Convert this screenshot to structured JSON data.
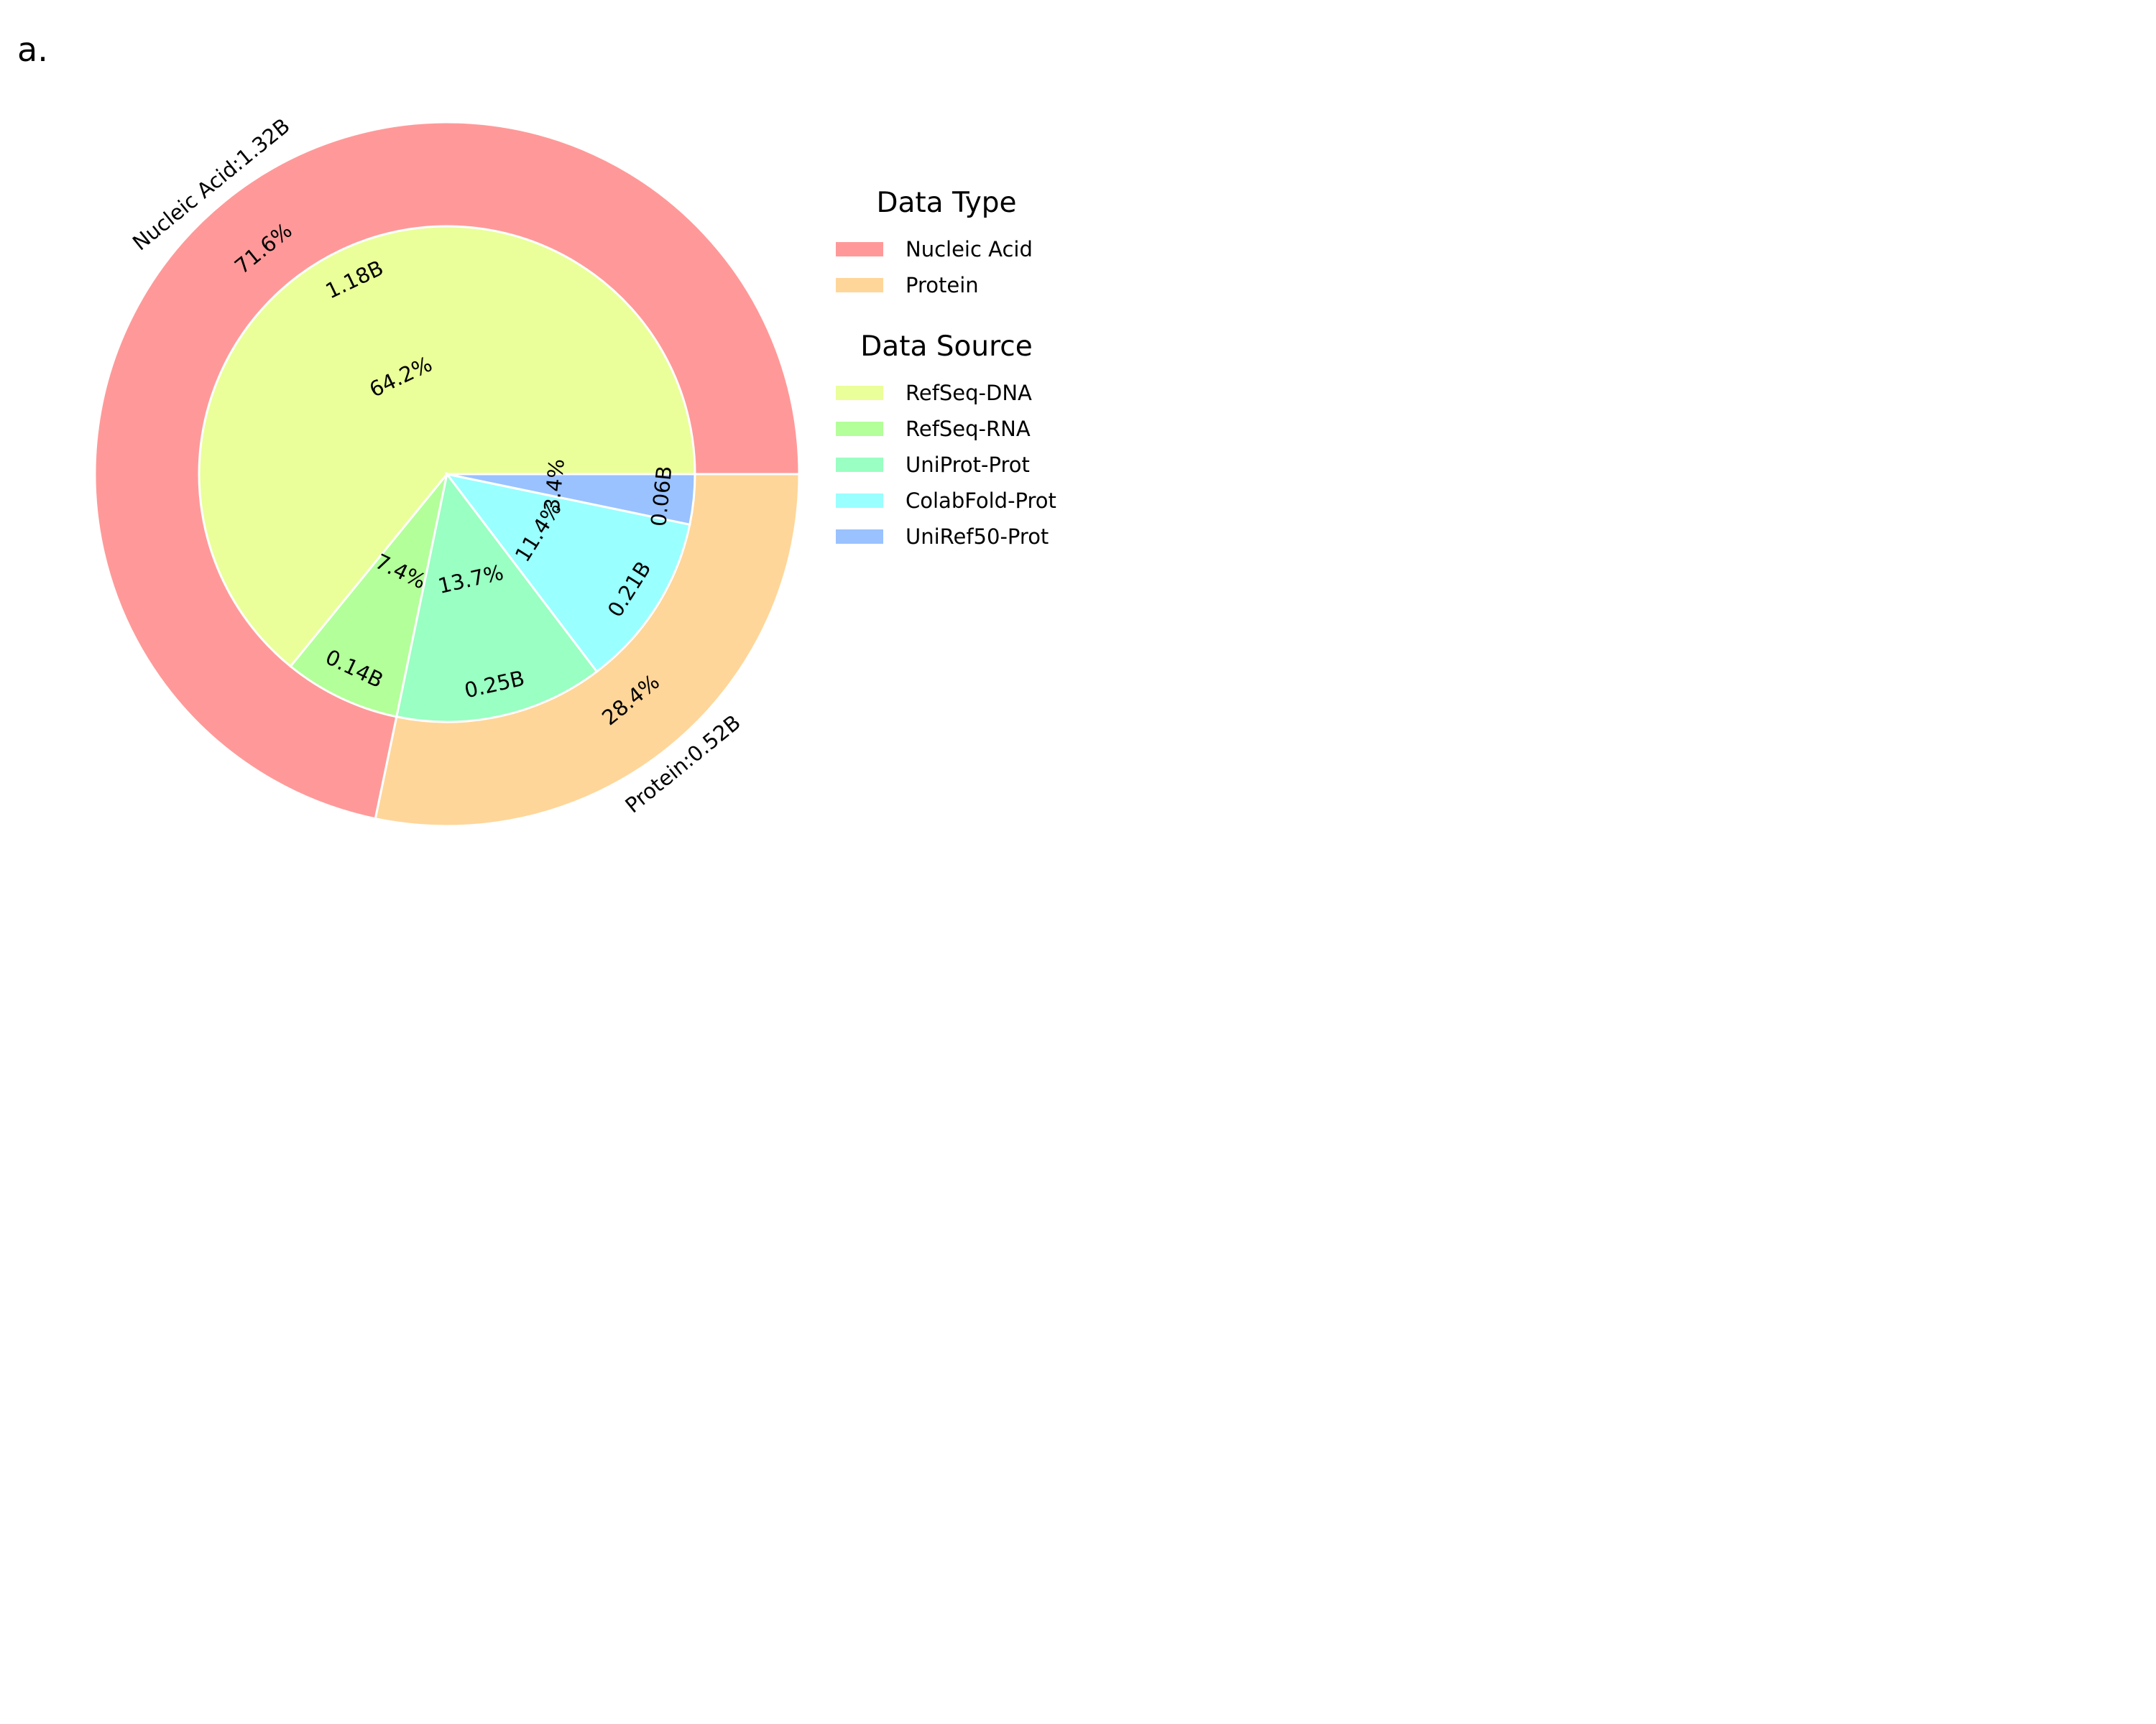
{
  "panel_label": "a.",
  "chart_data": [
    {
      "type": "pie",
      "ring": "outer",
      "slices": [
        {
          "name": "Nucleic Acid",
          "value": 1.32,
          "value_text": "1.32B",
          "percent_text": "71.6%",
          "color": "#ff9999"
        },
        {
          "name": "Protein",
          "value": 0.52,
          "value_text": "0.52B",
          "percent_text": "28.4%",
          "color": "#ffd699"
        }
      ]
    },
    {
      "type": "pie",
      "ring": "inner",
      "slices": [
        {
          "name": "RefSeq-DNA",
          "value": 1.18,
          "value_text": "1.18B",
          "percent_text": "64.2%",
          "color": "#eaff99"
        },
        {
          "name": "RefSeq-RNA",
          "value": 0.14,
          "value_text": "0.14B",
          "percent_text": "7.4%",
          "color": "#b3ff99"
        },
        {
          "name": "UniProt-Prot",
          "value": 0.25,
          "value_text": "0.25B",
          "percent_text": "13.7%",
          "color": "#99ffc2"
        },
        {
          "name": "ColabFold-Prot",
          "value": 0.21,
          "value_text": "0.21B",
          "percent_text": "11.4%",
          "color": "#99ffff"
        },
        {
          "name": "UniRef50-Prot",
          "value": 0.06,
          "value_text": "0.06B",
          "percent_text": "3.4%",
          "color": "#99c2ff"
        }
      ]
    }
  ],
  "legends": [
    {
      "title": "Data Type",
      "entries": [
        "Nucleic Acid",
        "Protein"
      ],
      "colors": [
        "#ff9999",
        "#ffd699"
      ]
    },
    {
      "title": "Data Source",
      "entries": [
        "RefSeq-DNA",
        "RefSeq-RNA",
        "UniProt-Prot",
        "ColabFold-Prot",
        "UniRef50-Prot"
      ],
      "colors": [
        "#eaff99",
        "#b3ff99",
        "#99ffc2",
        "#99ffff",
        "#99c2ff"
      ]
    }
  ],
  "legend_placement": "right"
}
